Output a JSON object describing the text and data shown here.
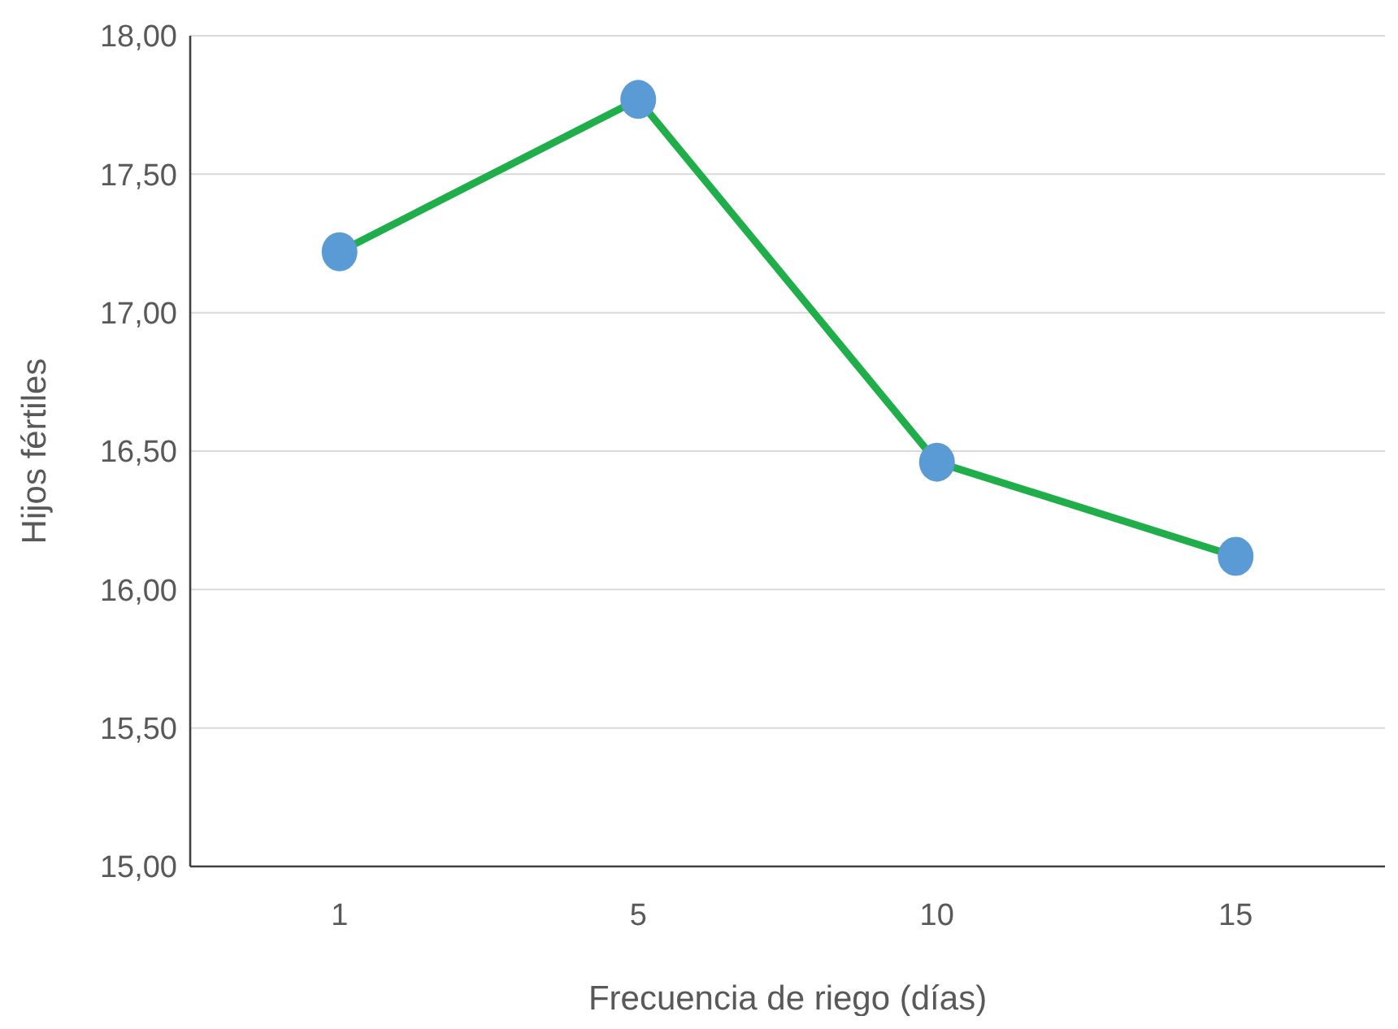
{
  "chart_data": {
    "type": "line",
    "xlabel": "Frecuencia de riego (días)",
    "ylabel": "Hijos fértiles",
    "categories": [
      "1",
      "5",
      "10",
      "15"
    ],
    "series": [
      {
        "color": "#1fae4a",
        "values": [
          17.22,
          17.77,
          16.46,
          16.12
        ]
      }
    ],
    "marker": "circle",
    "line_style": "solid",
    "grid": "y",
    "ylim": [
      15,
      18
    ],
    "yticks": [
      {
        "value": 15,
        "label": "15,00"
      },
      {
        "value": 15.5,
        "label": "15,50"
      },
      {
        "value": 16,
        "label": "16,00"
      },
      {
        "value": 16.5,
        "label": "16,50"
      },
      {
        "value": 17,
        "label": "17,00"
      },
      {
        "value": 17.5,
        "label": "17,50"
      },
      {
        "value": 18,
        "label": "18,00"
      }
    ]
  }
}
